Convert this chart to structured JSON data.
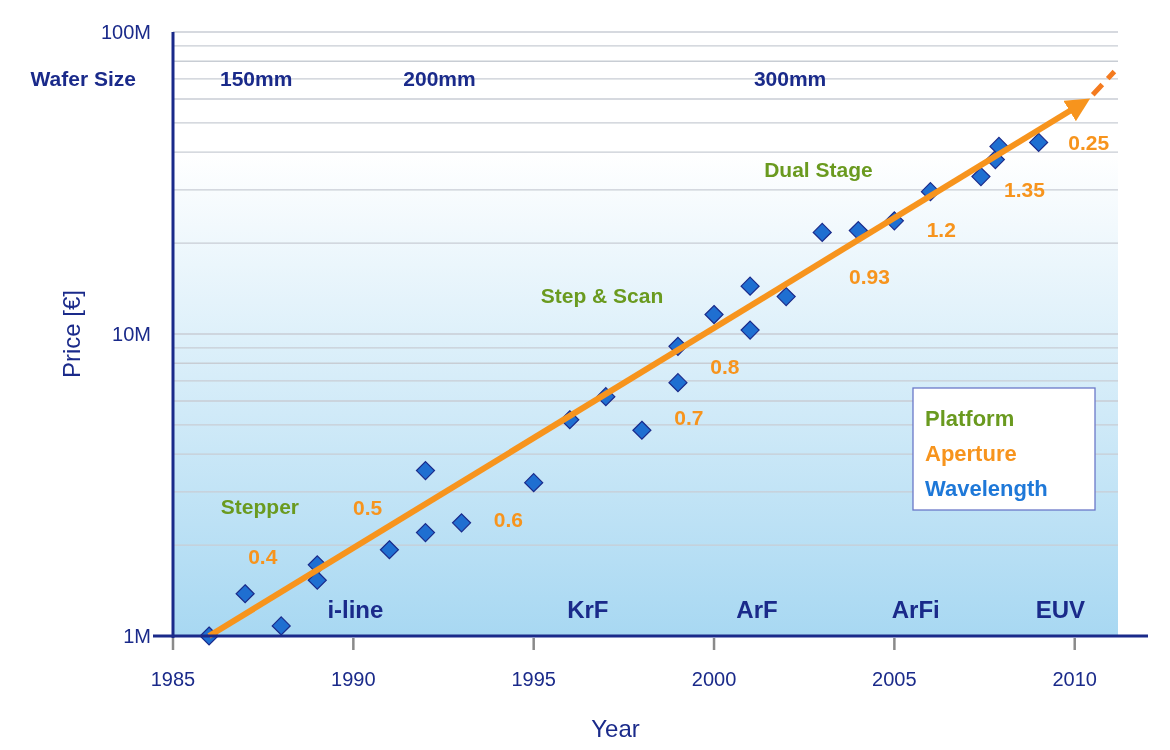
{
  "chart_data": {
    "type": "scatter",
    "xlabel": "Year",
    "ylabel": "Price [€]",
    "log": "y",
    "grid": "y",
    "xlim": [
      1985,
      2011.2
    ],
    "xticks": [
      1985,
      1990,
      1995,
      2000,
      2005,
      2010
    ],
    "ylim": [
      1,
      100
    ],
    "yticks": [
      {
        "value": 1,
        "label": "1M"
      },
      {
        "value": 2,
        "label": null
      },
      {
        "value": 3,
        "label": null
      },
      {
        "value": 4,
        "label": null
      },
      {
        "value": 5,
        "label": null
      },
      {
        "value": 6,
        "label": null
      },
      {
        "value": 7,
        "label": null
      },
      {
        "value": 8,
        "label": null
      },
      {
        "value": 9,
        "label": null
      },
      {
        "value": 10,
        "label": "10M"
      },
      {
        "value": 20,
        "label": null
      },
      {
        "value": 30,
        "label": null
      },
      {
        "value": 40,
        "label": null
      },
      {
        "value": 50,
        "label": null
      },
      {
        "value": 60,
        "label": null
      },
      {
        "value": 70,
        "label": null
      },
      {
        "value": 80,
        "label": null
      },
      {
        "value": 90,
        "label": null
      },
      {
        "value": 100,
        "label": "100M"
      }
    ],
    "series": [
      {
        "marker": "diamond",
        "color": "#1f6fd1",
        "x": [
          1986,
          1987,
          1988,
          1989,
          1989,
          1991,
          1992,
          1992,
          1993,
          1995,
          1996,
          1997,
          1998,
          1999,
          1999,
          2000,
          2001,
          2001,
          2002,
          2003,
          2004,
          2005,
          2006,
          2007.4,
          2007.8,
          2007.9,
          2009
        ],
        "values": [
          1.0,
          1.38,
          1.08,
          1.72,
          1.53,
          1.93,
          3.53,
          2.2,
          2.37,
          3.22,
          5.2,
          6.2,
          4.8,
          9.1,
          6.9,
          11.6,
          14.4,
          10.3,
          13.3,
          21.7,
          22.0,
          23.7,
          29.6,
          33.2,
          37.8,
          41.8,
          43.1
        ]
      },
      {
        "type": "line",
        "marker": "none",
        "line_style": "solid",
        "color": "#f7941d",
        "x": [
          1986,
          2010.2
        ],
        "values": [
          1,
          58
        ]
      },
      {
        "type": "line",
        "marker": "none",
        "line_style": "dashed",
        "color": "#f47b20",
        "x": [
          2010.5,
          2011.1
        ],
        "values": [
          62,
          74
        ]
      }
    ],
    "annotations": [
      "Wafer Size",
      "150mm",
      "200mm",
      "300mm",
      "Stepper",
      "Step & Scan",
      "Dual Stage",
      "0.4",
      "0.5",
      "0.6",
      "0.7",
      "0.8",
      "0.93",
      "1.2",
      "1.35",
      "0.25",
      "i-line",
      "KrF",
      "ArF",
      "ArFi",
      "EUV",
      "Platform",
      "Aperture",
      "Wavelength"
    ]
  }
}
